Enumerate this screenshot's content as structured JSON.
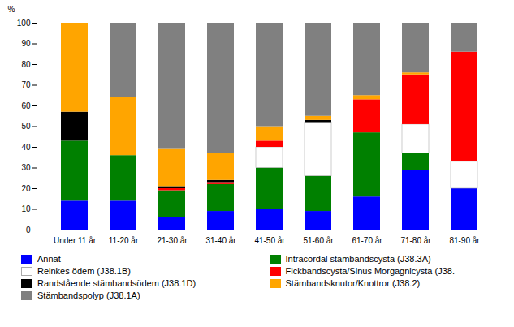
{
  "chart_data": {
    "type": "bar",
    "stacked": true,
    "categories": [
      "Under 11 år",
      "11-20 år",
      "21-30 år",
      "31-40 år",
      "41-50 år",
      "51-60 år",
      "61-70 år",
      "71-80 år",
      "81-90 år"
    ],
    "series": [
      {
        "name": "Annat",
        "color": "#0000FF",
        "values": [
          14,
          14,
          6,
          9,
          10,
          9,
          16,
          29,
          20
        ]
      },
      {
        "name": "Intracordal stämbandscysta (J38.3A)",
        "color": "#008000",
        "values": [
          29,
          22,
          13,
          13,
          20,
          17,
          31,
          8,
          0
        ]
      },
      {
        "name": "Reinkes ödem (J38.1B)",
        "color": "#FFFFFF",
        "values": [
          0,
          0,
          0,
          0,
          10,
          26,
          0,
          14,
          13
        ]
      },
      {
        "name": "Fickbandscysta/Sinus Morgagnicysta (J38.",
        "color": "#FF0000",
        "values": [
          0,
          0,
          1,
          1,
          3,
          0,
          16,
          24,
          53
        ]
      },
      {
        "name": "Randstående stämbandsödem (J38.1D)",
        "color": "#000000",
        "values": [
          14,
          0,
          1,
          1,
          0,
          1,
          0,
          0,
          0
        ]
      },
      {
        "name": "Stämbandsknutor/Knottror (J38.2)",
        "color": "#FFA500",
        "values": [
          43,
          28,
          18,
          13,
          7,
          2,
          2,
          1,
          0
        ]
      },
      {
        "name": "Stämbandspolyp (J38.1A)",
        "color": "#808080",
        "values": [
          0,
          36,
          61,
          63,
          50,
          45,
          35,
          24,
          14
        ]
      }
    ],
    "ylabel": "%",
    "ylim": [
      0,
      100
    ],
    "yticks": [
      0,
      10,
      20,
      30,
      40,
      50,
      60,
      70,
      80,
      90,
      100
    ],
    "grid": false,
    "legend": "bottom"
  }
}
